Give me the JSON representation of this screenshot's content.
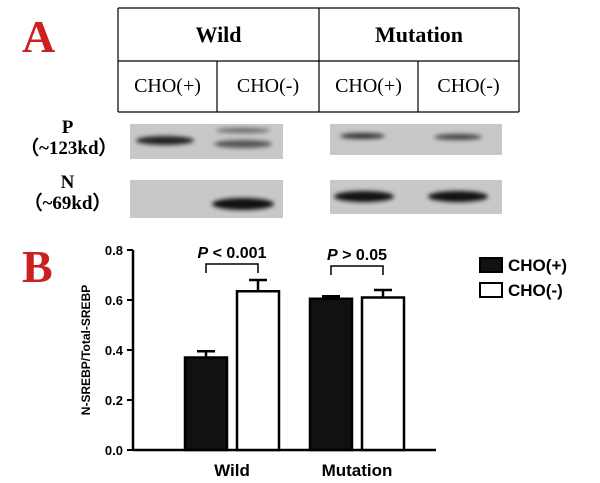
{
  "panel_a": {
    "letter": "A",
    "groups": [
      "Wild",
      "Mutation"
    ],
    "conditions": [
      "CHO(+)",
      "CHO(-)",
      "CHO(+)",
      "CHO(-)"
    ],
    "bands": [
      {
        "name": "P",
        "size": "（~123kd）"
      },
      {
        "name": "N",
        "size": "（~69kd）"
      }
    ]
  },
  "panel_b": {
    "letter": "B"
  },
  "chart_data": {
    "type": "bar",
    "categories": [
      "Wild",
      "Mutation"
    ],
    "series": [
      {
        "name": "CHO(+)",
        "color": "#111111",
        "values": [
          0.37,
          0.605
        ],
        "errors": [
          0.025,
          0.01
        ]
      },
      {
        "name": "CHO(-)",
        "color": "#ffffff",
        "values": [
          0.635,
          0.61
        ],
        "errors": [
          0.045,
          0.03
        ]
      }
    ],
    "ylabel": "N-SREBP/Total-SREBP",
    "xlabel": "",
    "ylim": [
      0,
      0.8
    ],
    "yticks": [
      "0.0",
      "0.2",
      "0.4",
      "0.6",
      "0.8"
    ],
    "annotations": [
      {
        "category": "Wild",
        "p": "P",
        "rest": " < 0.001"
      },
      {
        "category": "Mutation",
        "p": "P",
        "rest": " > 0.05"
      }
    ],
    "legend_position": "right"
  }
}
